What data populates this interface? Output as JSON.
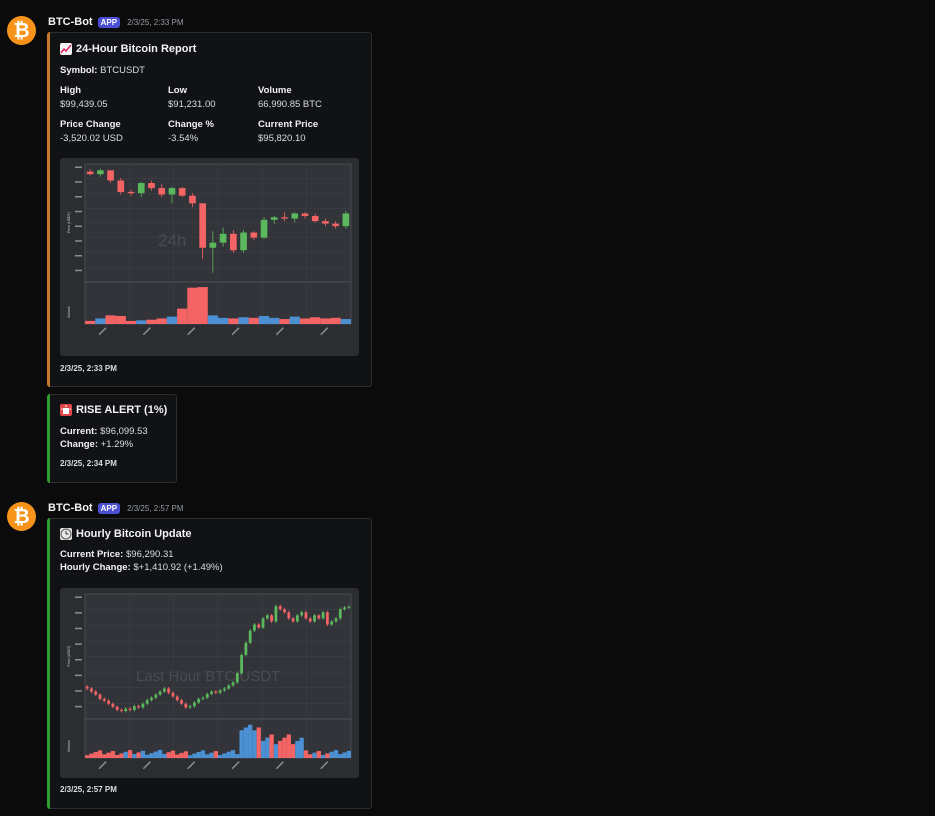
{
  "colors": {
    "orange_accent": "#e67e22",
    "green_accent": "#2ecc40",
    "up": "#5cb85c",
    "down": "#f46464",
    "vol_blue": "#4a90d2"
  },
  "messages": [
    {
      "author": "BTC-Bot",
      "badge": "APP",
      "timestamp": "2/3/25, 2:33 PM",
      "avatar_icon": "bitcoin-icon",
      "avatar_glyph": "₿",
      "embed": {
        "title_icon": "chart-increasing-icon",
        "title": "24-Hour Bitcoin Report",
        "symbol_label": "Symbol:",
        "symbol": "BTCUSDT",
        "fields": [
          {
            "name": "High",
            "value": "$99,439.05"
          },
          {
            "name": "Low",
            "value": "$91,231.00"
          },
          {
            "name": "Volume",
            "value": "66,990.85 BTC"
          },
          {
            "name": "Price Change",
            "value": "-3,520.02 USD"
          },
          {
            "name": "Change %",
            "value": "-3.54%"
          },
          {
            "name": "Current Price",
            "value": "$95,820.10"
          }
        ],
        "chart_watermark": "24h",
        "footer": "2/3/25, 2:33 PM"
      }
    },
    {
      "embed": {
        "title_icon": "rotating-light-icon",
        "title": "RISE ALERT (1%)",
        "current_label": "Current:",
        "current_value": "$96,099.53",
        "change_label": "Change:",
        "change_value": "+1.29%",
        "footer": "2/3/25, 2:34 PM"
      }
    },
    {
      "author": "BTC-Bot",
      "badge": "APP",
      "timestamp": "2/3/25, 2:57 PM",
      "avatar_icon": "bitcoin-icon",
      "avatar_glyph": "₿",
      "embed": {
        "title_icon": "clock-icon",
        "title": "Hourly Bitcoin Update",
        "current_label": "Current Price:",
        "current_value": "$96,290.31",
        "change_label": "Hourly Change:",
        "change_value": "$+1,410.92 (+1.49%)",
        "chart_watermark": "Last Hour BTC/USDT",
        "footer": "2/3/25, 2:57 PM"
      }
    }
  ],
  "chart_data": [
    {
      "type": "candlestick",
      "title": "24h",
      "ylabel": "Price (USDT)",
      "volume_label": "Volume",
      "candles": [
        {
          "o": 99200,
          "h": 99400,
          "l": 98900,
          "c": 99000
        },
        {
          "o": 99000,
          "h": 99440,
          "l": 98800,
          "c": 99300
        },
        {
          "o": 99300,
          "h": 99300,
          "l": 98300,
          "c": 98500
        },
        {
          "o": 98500,
          "h": 98700,
          "l": 97400,
          "c": 97600
        },
        {
          "o": 97600,
          "h": 97800,
          "l": 97300,
          "c": 97500
        },
        {
          "o": 97500,
          "h": 98400,
          "l": 97200,
          "c": 98300
        },
        {
          "o": 98300,
          "h": 98500,
          "l": 97700,
          "c": 97900
        },
        {
          "o": 97900,
          "h": 98200,
          "l": 97200,
          "c": 97400
        },
        {
          "o": 97400,
          "h": 98000,
          "l": 96700,
          "c": 97900
        },
        {
          "o": 97900,
          "h": 98000,
          "l": 97200,
          "c": 97300
        },
        {
          "o": 97300,
          "h": 97500,
          "l": 96400,
          "c": 96700
        },
        {
          "o": 96700,
          "h": 96700,
          "l": 92300,
          "c": 93200
        },
        {
          "o": 93200,
          "h": 94500,
          "l": 91231,
          "c": 93600
        },
        {
          "o": 93600,
          "h": 94800,
          "l": 93300,
          "c": 94300
        },
        {
          "o": 94300,
          "h": 94600,
          "l": 92800,
          "c": 93000
        },
        {
          "o": 93000,
          "h": 94600,
          "l": 92800,
          "c": 94400
        },
        {
          "o": 94400,
          "h": 94500,
          "l": 93800,
          "c": 94000
        },
        {
          "o": 94000,
          "h": 95600,
          "l": 93900,
          "c": 95400
        },
        {
          "o": 95400,
          "h": 95700,
          "l": 95100,
          "c": 95600
        },
        {
          "o": 95600,
          "h": 96000,
          "l": 95300,
          "c": 95500
        },
        {
          "o": 95500,
          "h": 96000,
          "l": 95200,
          "c": 95900
        },
        {
          "o": 95900,
          "h": 96000,
          "l": 95500,
          "c": 95700
        },
        {
          "o": 95700,
          "h": 95900,
          "l": 95200,
          "c": 95300
        },
        {
          "o": 95300,
          "h": 95500,
          "l": 94900,
          "c": 95100
        },
        {
          "o": 95100,
          "h": 95300,
          "l": 94700,
          "c": 94900
        },
        {
          "o": 94900,
          "h": 96100,
          "l": 94700,
          "c": 95900
        }
      ],
      "volumes": [
        500,
        900,
        1400,
        1300,
        500,
        600,
        700,
        900,
        1200,
        2500,
        5900,
        6000,
        1400,
        1000,
        900,
        1100,
        1000,
        1300,
        1000,
        800,
        1200,
        900,
        1100,
        900,
        1000,
        800
      ],
      "ylim": [
        90500,
        99800
      ],
      "vol_max": 6500,
      "x_tick_labels": [
        "",
        "",
        "",
        "",
        "",
        ""
      ]
    },
    {
      "type": "candlestick",
      "title": "Last Hour BTC/USDT",
      "ylabel": "Price (USDT)",
      "volume_label": "Volume",
      "closes": [
        94950,
        94900,
        94850,
        94780,
        94750,
        94700,
        94650,
        94600,
        94580,
        94620,
        94600,
        94660,
        94640,
        94700,
        94760,
        94800,
        94850,
        94900,
        94950,
        94880,
        94820,
        94760,
        94700,
        94640,
        94660,
        94720,
        94780,
        94800,
        94860,
        94900,
        94880,
        94920,
        94950,
        95000,
        95050,
        95200,
        95500,
        95700,
        95900,
        96000,
        95950,
        96100,
        96150,
        96050,
        96300,
        96250,
        96200,
        96100,
        96050,
        96150,
        96200,
        96100,
        96050,
        96150,
        96100,
        96200,
        96000,
        96050,
        96100,
        96250,
        96280,
        96290
      ],
      "ylim": [
        94450,
        96500
      ],
      "vol_max": 160,
      "x_tick_labels": [
        "",
        "",
        "",
        "",
        "",
        ""
      ]
    }
  ]
}
